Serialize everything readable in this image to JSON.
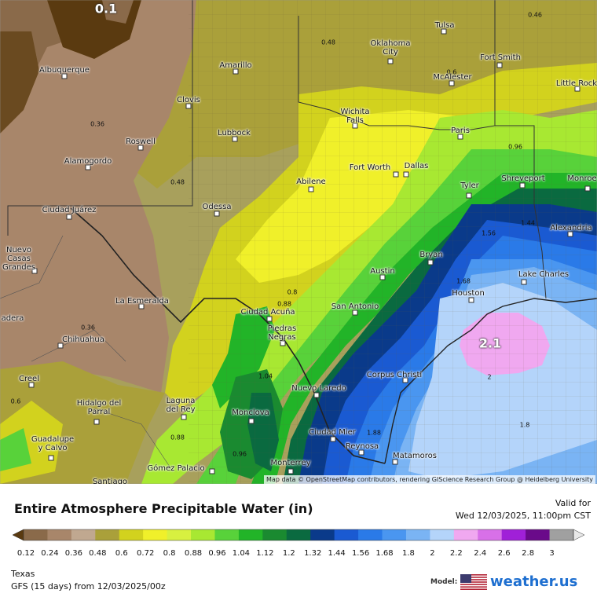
{
  "map": {
    "attribution": "Map data © OpenStreetMap contributors, rendering GIScience Research Group @ Heidelberg University",
    "big_labels": [
      {
        "text": "0.1"
      },
      {
        "text": "2.1"
      }
    ],
    "contour_labels": [
      "0.46",
      "0.48",
      "0.6",
      "0.36",
      "0.48",
      "0.96",
      "1.44",
      "1.56",
      "1.68",
      "0.8",
      "0.88",
      "0.36",
      "1.04",
      "0.6",
      "0.88",
      "0.96",
      "1.88",
      "2",
      "1.8"
    ],
    "cities": [
      "Tulsa",
      "Oklahoma\nCity",
      "Fort Smith",
      "Amarillo",
      "McAlester",
      "Little Rock",
      "Albuquerque",
      "Clovis",
      "Wichita\nFalls",
      "Paris",
      "Lubbock",
      "Roswell",
      "Alamogordo",
      "Fort Worth",
      "Dallas",
      "Shreveport",
      "Monroe",
      "Abilene",
      "Tyler",
      "Ciudad Juárez",
      "Odessa",
      "Alexandria",
      "Nuevo\nCasas\nGrandes",
      "Bryan",
      "Austin",
      "Lake Charles",
      "Houston",
      "La Esmeralda",
      "Ciudad Acuña",
      "San Antonio",
      "Piedras\nNegras",
      "Chihuahua",
      "Corpus Christi",
      "Creel",
      "Nuevo Laredo",
      "Hidalgo del\nParral",
      "Laguna\ndel Rey",
      "Monclova",
      "Ciudad Mier",
      "Guadalupe\ny Calvo",
      "Reynosa",
      "Matamoros",
      "Monterrey",
      "Gómez Palacio",
      "Santiago",
      "adera"
    ]
  },
  "legend": {
    "title": "Entire Atmosphere Precipitable Water (in)",
    "valid_label": "Valid for",
    "valid_time": "Wed 12/03/2025, 11:00pm CST",
    "ticks": [
      "0.12",
      "0.24",
      "0.36",
      "0.48",
      "0.6",
      "0.72",
      "0.8",
      "0.88",
      "0.96",
      "1.04",
      "1.12",
      "1.2",
      "1.32",
      "1.44",
      "1.56",
      "1.68",
      "1.8",
      "2",
      "2.2",
      "2.4",
      "2.6",
      "2.8",
      "3"
    ],
    "colors": [
      "#5a3a10",
      "#8a6a4a",
      "#a8866a",
      "#c0a890",
      "#aaa03a",
      "#d2d21e",
      "#f0f02a",
      "#d8f040",
      "#a8e832",
      "#58d23a",
      "#22b428",
      "#1a8a30",
      "#0a6a40",
      "#0a3a8a",
      "#1a5ad2",
      "#2a7ae8",
      "#4a96f0",
      "#7ab4f4",
      "#b4d4fa",
      "#f0a8f0",
      "#d870e8",
      "#a020d8",
      "#6a0a8a",
      "#a0a0a0",
      "#e8e8e8"
    ],
    "region": "Texas",
    "model_run": "GFS (15 days) from  12/03/2025/00z",
    "model_label": "Model:",
    "brand": "weather.us"
  }
}
